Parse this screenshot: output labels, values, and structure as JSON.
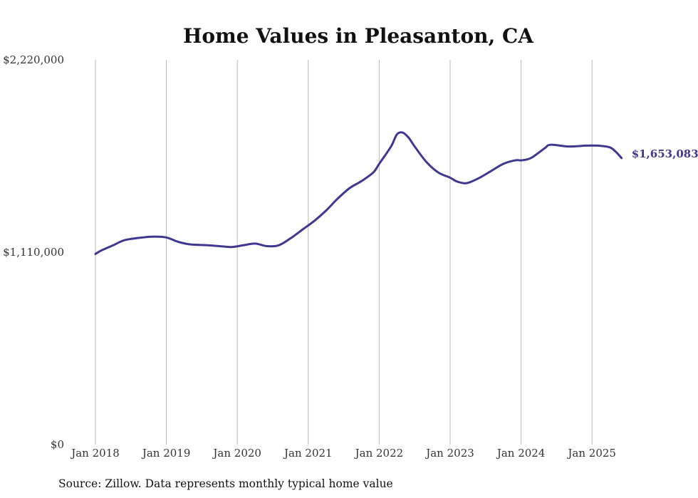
{
  "chart_data": {
    "type": "line",
    "title": "Home Values in Pleasanton, CA",
    "source": "Source: Zillow. Data represents monthly typical home value",
    "xlabel": "",
    "ylabel": "",
    "grid": "vertical",
    "legend": "none",
    "line_color": "#3f3790",
    "xlim": [
      "2018-01",
      "2025-07"
    ],
    "ylim": [
      0,
      2220000
    ],
    "x_ticks": [
      "2018-01",
      "2019-01",
      "2020-01",
      "2021-01",
      "2022-01",
      "2023-01",
      "2024-01",
      "2025-01"
    ],
    "x_tick_labels": [
      "Jan 2018",
      "Jan 2019",
      "Jan 2020",
      "Jan 2021",
      "Jan 2022",
      "Jan 2023",
      "Jan 2024",
      "Jan 2025"
    ],
    "y_ticks": [
      0,
      1110000,
      2220000
    ],
    "y_tick_labels": [
      "$0",
      "$1,110,000",
      "$2,220,000"
    ],
    "end_label": "$1,653,083",
    "series": [
      {
        "x": [
          "2018-01",
          "2018-02",
          "2018-04",
          "2018-06",
          "2018-09",
          "2018-11",
          "2019-01",
          "2019-03",
          "2019-05",
          "2019-08",
          "2019-10",
          "2019-12",
          "2020-02",
          "2020-04",
          "2020-06",
          "2020-08",
          "2020-10",
          "2020-12",
          "2021-02",
          "2021-04",
          "2021-06",
          "2021-08",
          "2021-10",
          "2021-12",
          "2022-01",
          "2022-03",
          "2022-04",
          "2022-05",
          "2022-06",
          "2022-07",
          "2022-09",
          "2022-11",
          "2023-01",
          "2023-02",
          "2023-03",
          "2023-04",
          "2023-06",
          "2023-08",
          "2023-10",
          "2023-12",
          "2024-01",
          "2024-02",
          "2024-03",
          "2024-05",
          "2024-06",
          "2024-09",
          "2024-12",
          "2025-02",
          "2025-04",
          "2025-05",
          "2025-06"
        ],
        "values": [
          1100000,
          1120000,
          1150000,
          1180000,
          1195000,
          1200000,
          1195000,
          1170000,
          1155000,
          1150000,
          1145000,
          1140000,
          1150000,
          1160000,
          1145000,
          1150000,
          1190000,
          1240000,
          1290000,
          1350000,
          1420000,
          1480000,
          1520000,
          1570000,
          1620000,
          1720000,
          1790000,
          1800000,
          1770000,
          1720000,
          1630000,
          1570000,
          1540000,
          1520000,
          1510000,
          1510000,
          1540000,
          1580000,
          1620000,
          1640000,
          1640000,
          1645000,
          1660000,
          1710000,
          1730000,
          1720000,
          1725000,
          1725000,
          1715000,
          1690000,
          1653083
        ]
      }
    ]
  }
}
